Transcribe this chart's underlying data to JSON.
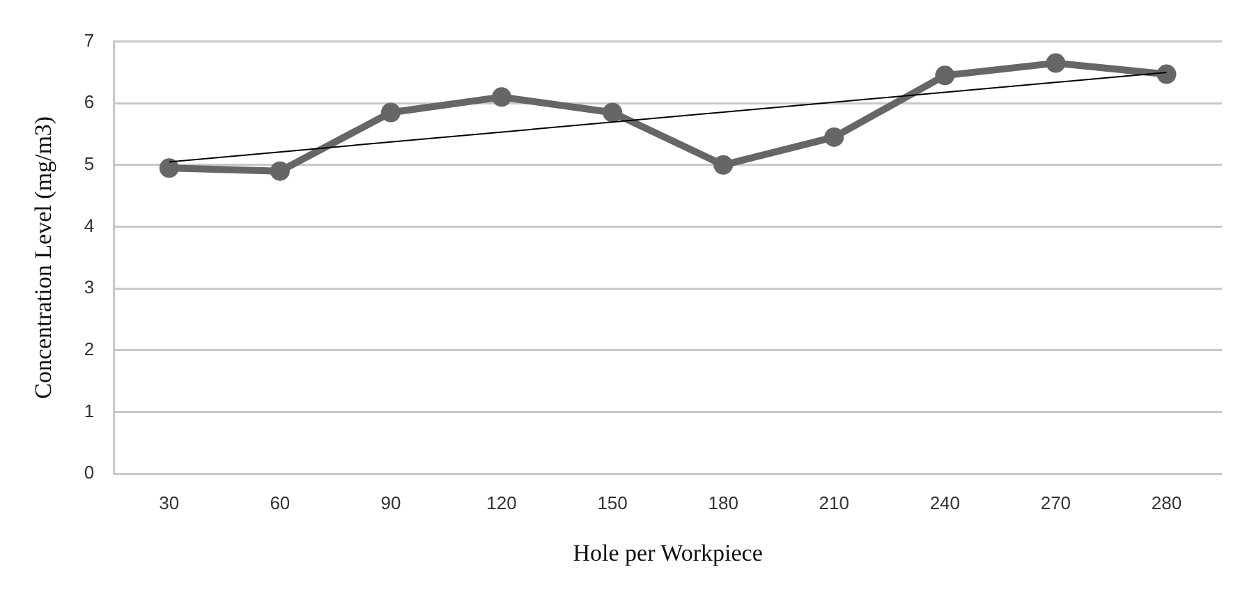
{
  "chart_data": {
    "type": "line",
    "xlabel": "Hole per Workpiece",
    "ylabel": "Concentration Level (mg/m3)",
    "categories": [
      "30",
      "60",
      "90",
      "120",
      "150",
      "180",
      "210",
      "240",
      "270",
      "280"
    ],
    "series": [
      {
        "color": "#666666",
        "values": [
          4.95,
          4.9,
          5.85,
          6.1,
          5.85,
          5.0,
          5.45,
          6.45,
          6.65,
          6.47
        ],
        "marker": "circle"
      },
      {
        "type": "line",
        "color": "#000000",
        "x": [
          "30",
          "280"
        ],
        "values": [
          5.05,
          6.5
        ],
        "marker": "none"
      }
    ],
    "ylim": [
      0,
      7
    ],
    "yticks": [
      0,
      1,
      2,
      3,
      4,
      5,
      6,
      7
    ],
    "grid": "y",
    "legend": false
  }
}
